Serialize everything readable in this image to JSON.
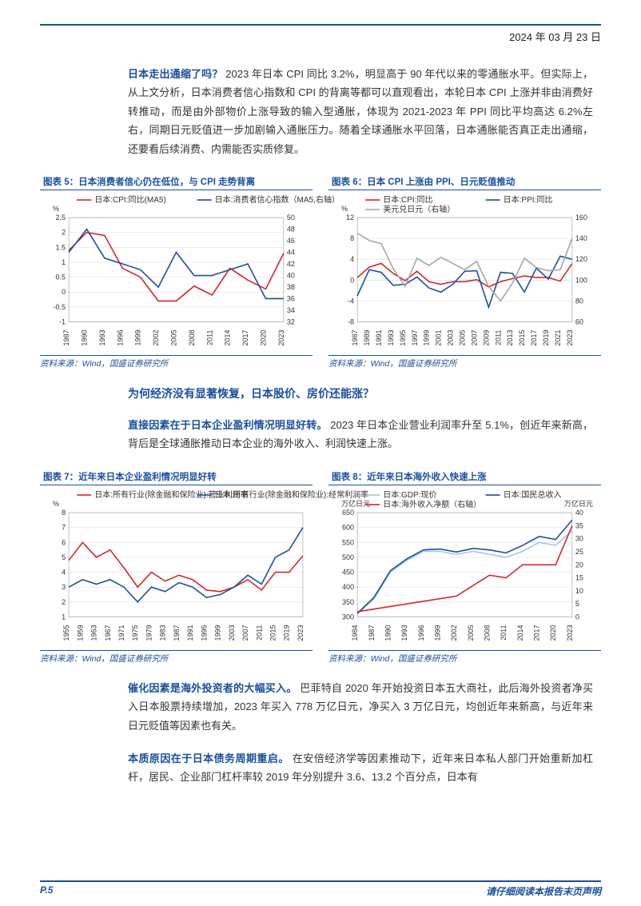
{
  "header": {
    "date": "2024 年 03 月 23 日"
  },
  "paragraphs": {
    "p1_hl": "日本走出通缩了吗？",
    "p1_body": "2023 年日本 CPI 同比 3.2%，明显高于 90 年代以来的零通胀水平。但实际上，从上文分析，日本消费者信心指数和 CPI 的背离等都可以直观看出，本轮日本 CPI 上涨并非由消费好转推动，而是由外部物价上涨导致的输入型通胀，体现为 2021-2023 年 PPI 同比平均高达 6.2%左右，同期日元贬值进一步加剧输入通胀压力。随着全球通胀水平回落，日本通胀能否真正走出通缩，还要看后续消费、内需能否实质修复。",
    "section_title": "为何经济没有显著恢复，日本股价、房价还能涨？",
    "p2_hl": "直接因素在于日本企业盈利情况明显好转。",
    "p2_body": "2023 年日本企业营业利润率升至 5.1%，创近年来新高，背后是全球通胀推动日本企业的海外收入、利润快速上涨。",
    "p3_hl": "催化因素是海外投资者的大幅买入。",
    "p3_body": "巴菲特自 2020 年开始投资日本五大商社，此后海外投资者净买入日本股票持续增加，2023 年买入 778 万亿日元，净买入 3 万亿日元，均创近年来新高，与近年来日元贬值等因素也有关。",
    "p4_hl": "本质原因在于日本债务周期重启。",
    "p4_body": "在安倍经济学等因素推动下，近年来日本私人部门开始重新加杠杆，居民、企业部门杠杆率较 2019 年分别提升 3.6、13.2 个百分点，日本有"
  },
  "charts": {
    "c5": {
      "title": "图表 5：日本消费者信心仍在低位，与 CPI 走势背离",
      "type": "line",
      "source": "资料来源：Wind，国盛证券研究所",
      "left_unit": "%",
      "right_unit": "",
      "y_left": {
        "min": -1,
        "max": 2.5,
        "step": 0.5
      },
      "y_right": {
        "min": 32,
        "max": 50,
        "step": 2
      },
      "x_labels": [
        "1987",
        "1990",
        "1993",
        "1996",
        "1999",
        "2002",
        "2005",
        "2008",
        "2011",
        "2014",
        "2017",
        "2020",
        "2023"
      ],
      "series": [
        {
          "name": "日本:CPI:同比(MA5)",
          "color": "#d62728",
          "axis": "left",
          "values": [
            1.4,
            2.0,
            1.9,
            0.8,
            0.5,
            -0.3,
            -0.3,
            0.2,
            -0.1,
            0.8,
            0.4,
            0.1,
            1.3
          ]
        },
        {
          "name": "日本:消费者信心指数（MA5,右轴）",
          "color": "#1f4fa0",
          "axis": "right",
          "values": [
            44,
            48,
            43,
            42,
            41,
            38,
            44,
            40,
            40,
            41,
            42,
            36,
            36
          ]
        }
      ],
      "legend_fontsize": 10,
      "axis_fontsize": 9,
      "background_color": "#ffffff",
      "grid_color": "#d9d9d9",
      "line_width": 1.6
    },
    "c6": {
      "title": "图表 6：日本 CPI 上涨由 PPI、日元贬值推动",
      "type": "line",
      "source": "资料来源：Wind，国盛证券研究所",
      "left_unit": "%",
      "right_unit": "",
      "y_left": {
        "min": -8,
        "max": 12,
        "step": 4
      },
      "y_right": {
        "min": 60,
        "max": 160,
        "step": 20
      },
      "x_labels": [
        "1987",
        "1989",
        "1991",
        "1993",
        "1995",
        "1997",
        "1999",
        "2001",
        "2003",
        "2005",
        "2007",
        "2009",
        "2011",
        "2013",
        "2015",
        "2017",
        "2019",
        "2021",
        "2023"
      ],
      "series": [
        {
          "name": "日本:CPI:同比",
          "color": "#d62728",
          "axis": "left",
          "values": [
            0.5,
            2.5,
            3.2,
            1.3,
            -0.1,
            1.7,
            -0.3,
            -0.8,
            -0.3,
            -0.3,
            0.1,
            -1.3,
            -0.3,
            0.3,
            0.8,
            0.5,
            0.5,
            -0.2,
            3.2
          ]
        },
        {
          "name": "日本:PPI:同比",
          "color": "#1f4fa0",
          "axis": "left",
          "values": [
            -3,
            2,
            1.5,
            -1,
            -0.8,
            0.6,
            -1.5,
            -2.3,
            -0.8,
            1.7,
            1.8,
            -5.2,
            1.5,
            1.3,
            -2.3,
            2.3,
            0.2,
            4.6,
            4.0
          ]
        },
        {
          "name": "美元兑日元（右轴）",
          "color": "#a6a6a6",
          "axis": "right",
          "values": [
            145,
            138,
            135,
            111,
            94,
            121,
            114,
            122,
            116,
            110,
            118,
            94,
            80,
            97,
            121,
            112,
            109,
            110,
            140
          ]
        }
      ],
      "legend_fontsize": 10,
      "axis_fontsize": 9,
      "background_color": "#ffffff",
      "grid_color": "#d9d9d9",
      "line_width": 1.6
    },
    "c7": {
      "title": "图表 7：近年来日本企业盈利情况明显好转",
      "type": "line",
      "source": "资料来源：Wind，国盛证券研究所",
      "left_unit": "%",
      "y_left": {
        "min": 1,
        "max": 8,
        "step": 1
      },
      "x_labels": [
        "1955",
        "1959",
        "1963",
        "1967",
        "1971",
        "1975",
        "1979",
        "1983",
        "1987",
        "1991",
        "1995",
        "1999",
        "2003",
        "2007",
        "2011",
        "2015",
        "2019",
        "2023"
      ],
      "series": [
        {
          "name": "日本:所有行业(除金融和保险业):营业利润率",
          "color": "#d62728",
          "axis": "left",
          "values": [
            4.8,
            6.0,
            5.0,
            5.5,
            4.3,
            3.0,
            4.0,
            3.4,
            3.8,
            3.5,
            2.8,
            2.7,
            3.0,
            3.5,
            2.8,
            4.0,
            4.0,
            5.1
          ]
        },
        {
          "name": "日本:所有行业(除金融和保险业):经常利润率",
          "color": "#1f4fa0",
          "axis": "left",
          "values": [
            3.0,
            3.5,
            3.2,
            3.5,
            3.0,
            2.0,
            3.0,
            2.7,
            3.3,
            3.0,
            2.3,
            2.5,
            3.0,
            3.8,
            3.2,
            5.0,
            5.5,
            7.0
          ]
        }
      ],
      "legend_fontsize": 10,
      "axis_fontsize": 9,
      "background_color": "#ffffff",
      "grid_color": "#d9d9d9",
      "line_width": 1.6
    },
    "c8": {
      "title": "图表 8：近年来日本海外收入快速上涨",
      "type": "line",
      "source": "资料来源：Wind，国盛证券研究所",
      "left_unit": "万亿日元",
      "right_unit": "万亿日元",
      "y_left": {
        "min": 300,
        "max": 650,
        "step": 50
      },
      "y_right": {
        "min": 0,
        "max": 40,
        "step": 5
      },
      "x_labels": [
        "1984",
        "1987",
        "1990",
        "1993",
        "1996",
        "1999",
        "2002",
        "2005",
        "2008",
        "2011",
        "2014",
        "2017",
        "2020",
        "2023"
      ],
      "series": [
        {
          "name": "日本:GDP:现价",
          "color": "#9ecae1",
          "axis": "left",
          "values": [
            310,
            360,
            450,
            490,
            520,
            520,
            510,
            520,
            510,
            500,
            520,
            550,
            540,
            590
          ]
        },
        {
          "name": "日本:国民总收入",
          "color": "#1f4fa0",
          "axis": "left",
          "values": [
            312,
            365,
            455,
            495,
            525,
            528,
            518,
            530,
            525,
            515,
            540,
            570,
            560,
            625
          ]
        },
        {
          "name": "日本:海外收入净额（右轴）",
          "color": "#d62728",
          "axis": "right",
          "values": [
            2,
            3,
            4,
            5,
            6,
            7,
            8,
            12,
            16,
            15,
            20,
            20,
            20,
            35
          ]
        }
      ],
      "legend_fontsize": 10,
      "axis_fontsize": 9,
      "background_color": "#ffffff",
      "grid_color": "#d9d9d9",
      "line_width": 1.6
    }
  },
  "footer": {
    "page_num": "P.5",
    "disclaimer": "请仔细阅读本报告末页声明"
  }
}
